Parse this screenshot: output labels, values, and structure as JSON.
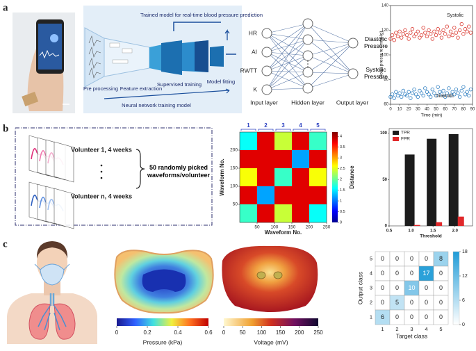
{
  "panel_labels": [
    "a",
    "b",
    "c"
  ],
  "panel_a": {
    "workflow": {
      "title": "Trained model for real-time blood pressure prediction",
      "steps": [
        "Pre processing",
        "Feature extraction",
        "Supervised training",
        "Model fitting"
      ],
      "caption": "Neural network training model"
    },
    "network": {
      "inputs": [
        "HR",
        "AI",
        "RWTT",
        "K"
      ],
      "outputs": [
        "Diastolic Pressure",
        "Systolic Pressure"
      ],
      "layers": [
        "Input layer",
        "Hidden layer",
        "Output layer"
      ]
    }
  },
  "panel_b": {
    "volunteers": [
      "Volunteer 1, 4 weeks",
      "Volunteer n, 4 weeks"
    ],
    "note": "50 randomly picked waveforms/volunteer"
  },
  "panel_c": {
    "pressure_colorbar": {
      "label": "Pressure (kPa)",
      "lim": [
        0,
        0.6
      ],
      "ticks": [
        0,
        0.2,
        0.4,
        0.6
      ]
    },
    "voltage_colorbar": {
      "label": "Voltage (mV)",
      "lim": [
        0,
        250
      ],
      "ticks": [
        0,
        50,
        100,
        150,
        200,
        250
      ]
    }
  },
  "chart_data": [
    {
      "type": "scatter",
      "x_label": "Time (min)",
      "y_label": "Blood pressure (mmHg)",
      "xlim": [
        0,
        90
      ],
      "xticks": [
        0,
        10,
        20,
        30,
        40,
        50,
        60,
        70,
        80,
        90
      ],
      "ylim": [
        60,
        140
      ],
      "yticks": [
        60,
        80,
        100,
        120,
        140
      ],
      "x": [
        0,
        2,
        4,
        6,
        8,
        10,
        12,
        14,
        16,
        18,
        20,
        22,
        24,
        26,
        28,
        30,
        32,
        34,
        36,
        38,
        40,
        42,
        44,
        46,
        48,
        50,
        52,
        54,
        56,
        58,
        60,
        62,
        64,
        66,
        68,
        70,
        72,
        74,
        76,
        78,
        80,
        82,
        84,
        86,
        88
      ],
      "series": [
        {
          "name": "Systolic",
          "color": "#d9342b",
          "values": [
            113,
            116,
            112,
            118,
            115,
            119,
            114,
            117,
            120,
            116,
            113,
            118,
            121,
            115,
            117,
            119,
            114,
            116,
            122,
            118,
            115,
            120,
            117,
            113,
            119,
            116,
            121,
            118,
            114,
            120,
            117,
            123,
            115,
            119,
            116,
            122,
            118,
            114,
            120,
            125,
            117,
            121,
            119,
            123,
            118
          ]
        },
        {
          "name": "Diastolic",
          "color": "#2f7fc1",
          "values": [
            66,
            68,
            65,
            70,
            67,
            69,
            66,
            71,
            68,
            67,
            70,
            65,
            69,
            72,
            68,
            66,
            71,
            69,
            67,
            73,
            70,
            68,
            66,
            72,
            69,
            67,
            74,
            70,
            68,
            71,
            66,
            69,
            73,
            67,
            70,
            68,
            72,
            69,
            66,
            71,
            74,
            68,
            70,
            67,
            72
          ]
        }
      ]
    },
    {
      "type": "heatmap",
      "x_label": "Waveform No.",
      "y_label": "Waveform No.",
      "colorbar_label": "Distance",
      "groups": [
        "1",
        "2",
        "3",
        "4",
        "5"
      ],
      "xlim": [
        0,
        250
      ],
      "xticks": [
        50,
        100,
        150,
        200,
        250
      ],
      "ylim": [
        0,
        250
      ],
      "yticks": [
        50,
        100,
        150,
        200
      ],
      "zlim": [
        0,
        4.2
      ],
      "zticks": [
        0,
        0.5,
        1,
        1.5,
        2,
        2.5,
        3,
        3.5,
        4
      ],
      "values": [
        [
          1.6,
          3.8,
          2.4,
          3.8,
          1.8
        ],
        [
          3.8,
          3.8,
          3.8,
          1.2,
          3.8
        ],
        [
          2.6,
          3.8,
          1.8,
          3.8,
          2.6
        ],
        [
          3.8,
          1.2,
          3.8,
          3.8,
          3.8
        ],
        [
          1.8,
          3.8,
          2.4,
          3.8,
          1.6
        ]
      ]
    },
    {
      "type": "bar",
      "x_label": "Threshold",
      "legend": "upper left",
      "xlim": [
        0.5,
        2.4
      ],
      "xticks": [
        0.5,
        {
          "value": 1.0,
          "label": "1.0"
        },
        1.5,
        {
          "value": 2.0,
          "label": "2.0"
        }
      ],
      "ylim": [
        0,
        105
      ],
      "yticks": [
        0,
        50,
        100
      ],
      "x": [
        1.0,
        1.5,
        2.0
      ],
      "series": [
        {
          "name": "TPR",
          "color": "#1c1c1c",
          "values": [
            77,
            94,
            99
          ]
        },
        {
          "name": "FPR",
          "color": "#e0282a",
          "values": [
            1,
            4,
            10
          ]
        }
      ]
    },
    {
      "type": "confusion",
      "x_label": "Target class",
      "y_label": "Output class",
      "categories": [
        "1",
        "2",
        "3",
        "4",
        "5"
      ],
      "y_categories": [
        "5",
        "4",
        "3",
        "2",
        "1"
      ],
      "values": [
        [
          0,
          0,
          0,
          0,
          8
        ],
        [
          0,
          0,
          0,
          17,
          0
        ],
        [
          0,
          0,
          10,
          0,
          0
        ],
        [
          0,
          5,
          0,
          0,
          0
        ],
        [
          6,
          0,
          0,
          0,
          0
        ]
      ],
      "zlim": [
        0,
        18
      ],
      "zticks": [
        0,
        6,
        12,
        18
      ]
    }
  ]
}
